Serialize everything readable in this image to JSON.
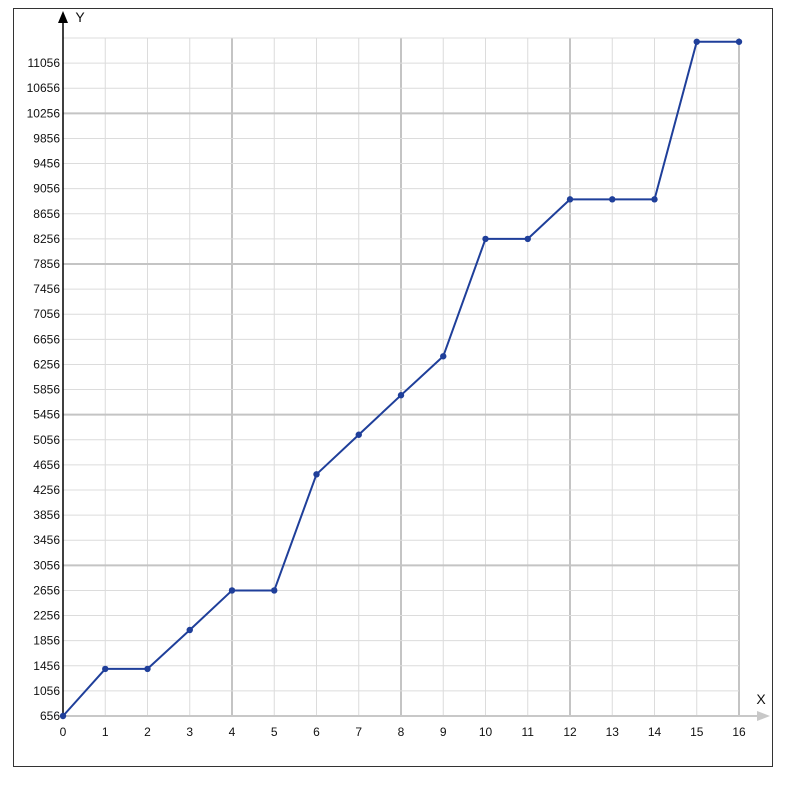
{
  "chart_data": {
    "type": "line",
    "xlabel": "X",
    "ylabel": "Y",
    "xlim": [
      0,
      16
    ],
    "ylim": [
      656,
      11456
    ],
    "x_ticks": [
      0,
      1,
      2,
      3,
      4,
      5,
      6,
      7,
      8,
      9,
      10,
      11,
      12,
      13,
      14,
      15,
      16
    ],
    "y_ticks": [
      656,
      1056,
      1456,
      1856,
      2256,
      2656,
      3056,
      3456,
      3856,
      4256,
      4656,
      5056,
      5456,
      5856,
      6256,
      6656,
      7056,
      7456,
      7856,
      8256,
      8656,
      9056,
      9456,
      9856,
      10256,
      10656,
      11056
    ],
    "major_x_every": 4,
    "major_y_every": 6,
    "grid": true,
    "series": [
      {
        "color": "#1f3f9a",
        "x": [
          0,
          1,
          2,
          3,
          4,
          5,
          6,
          7,
          8,
          9,
          10,
          11,
          12,
          13,
          14,
          15,
          16
        ],
        "y": [
          656,
          1406,
          1406,
          2026,
          2656,
          2656,
          4506,
          5136,
          5766,
          6386,
          8256,
          8256,
          8886,
          8886,
          8886,
          11396,
          11396
        ]
      }
    ]
  }
}
